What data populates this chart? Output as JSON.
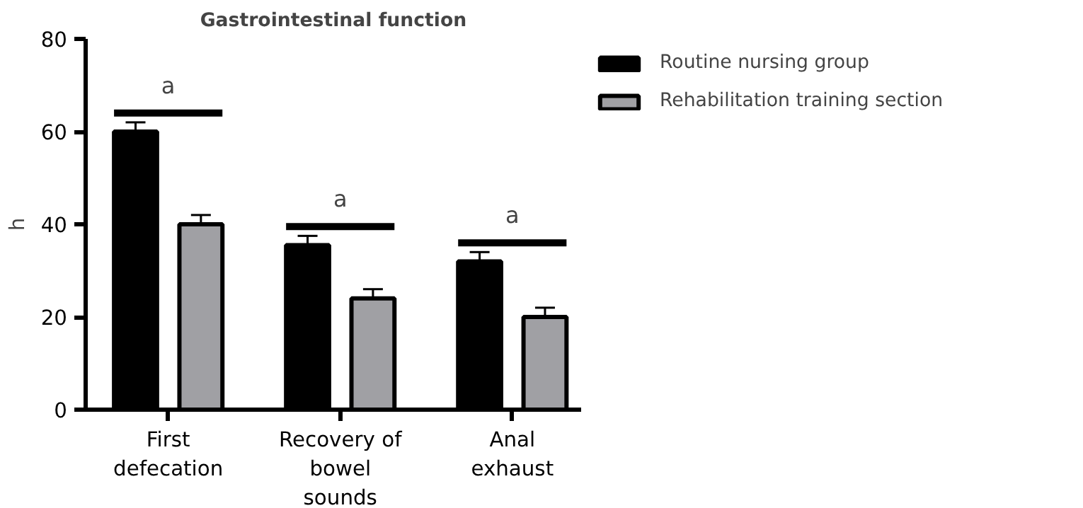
{
  "chart_data": {
    "type": "bar",
    "title": "Gastrointestinal function",
    "ylabel": "h",
    "categories": [
      "First defecation",
      "Recovery of bowel sounds",
      "Anal exhaust"
    ],
    "series": [
      {
        "name": "Routine nursing group",
        "color": "#000000",
        "values": [
          60,
          35.5,
          32
        ],
        "errors": [
          2,
          2,
          2
        ]
      },
      {
        "name": "Rehabilitation training section",
        "color": "#a0a0a4",
        "values": [
          40,
          24,
          20
        ],
        "errors": [
          2,
          2,
          2
        ]
      }
    ],
    "ylim": [
      0,
      80
    ],
    "yticks": [
      0,
      20,
      40,
      60,
      80
    ],
    "grid": false,
    "legend": "right",
    "annotations": [
      "a",
      "a",
      "a"
    ]
  }
}
